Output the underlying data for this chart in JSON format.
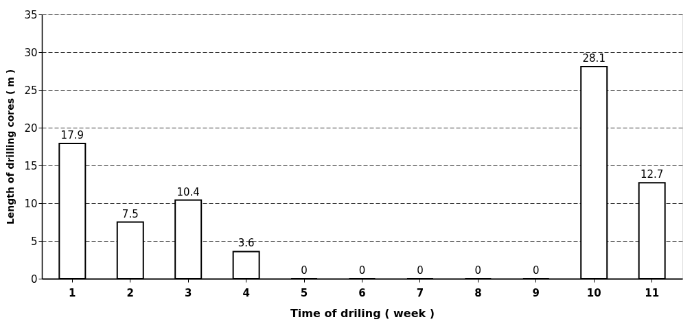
{
  "chart_data": {
    "type": "bar",
    "xlabel": "Time of driling ( week )",
    "ylabel": "Length of drilling cores ( m )",
    "categories": [
      "1",
      "2",
      "3",
      "4",
      "5",
      "6",
      "7",
      "8",
      "9",
      "10",
      "11"
    ],
    "values": [
      17.9,
      7.5,
      10.4,
      3.6,
      0,
      0,
      0,
      0,
      0,
      28.1,
      12.7
    ],
    "color": "#ffffff",
    "ylim": [
      0,
      35
    ],
    "yticks": [
      0,
      5,
      10,
      15,
      20,
      25,
      30,
      35
    ],
    "grid": "y",
    "data_labels": true
  }
}
